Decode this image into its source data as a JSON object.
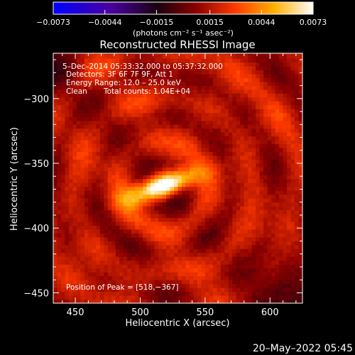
{
  "chart_data": {
    "type": "heatmap",
    "title": "Reconstructed RHESSI Image",
    "xlabel": "Heliocentric X (arcsec)",
    "ylabel": "Heliocentric Y (arcsec)",
    "xlim": [
      433,
      625
    ],
    "ylim": [
      -458,
      -265
    ],
    "x_ticks": [
      450,
      500,
      550,
      600
    ],
    "x_tick_labels": [
      "450",
      "500",
      "550",
      "600"
    ],
    "y_ticks": [
      -300,
      -350,
      -400,
      -450
    ],
    "y_tick_labels": [
      "−300",
      "−350",
      "−400",
      "−450"
    ],
    "colorbar": {
      "colormap": "fire (blue-purple-red-orange-yellow-white)",
      "range": [
        -0.0073,
        0.0073
      ],
      "tick_labels": [
        "−0.0073",
        "−0.0044",
        "−0.0015",
        "0.0015",
        "0.0044",
        "0.0073"
      ],
      "label": "(photons cm⁻² s⁻¹ asec⁻²)"
    },
    "annotations": {
      "time_range": "5–Dec–2014 05:33:32.000 to 05:37:32.000",
      "detectors": "Detectors: 3F 6F 7F 9F, Att 1",
      "energy": "Energy Range: 12.0 – 25.0 keV",
      "clean_label": "Clean",
      "total_counts": "Total counts: 1.04E+04",
      "peak": "Position of Peak = [518,−367]"
    },
    "peak_position": [
      518,
      -367
    ],
    "source": {
      "center": [
        518,
        -367
      ],
      "sigma_major_arcsec": 20,
      "sigma_minor_arcsec": 6,
      "orientation_deg": 20,
      "peak_level": 0.0073
    },
    "background_level": 0.0015
  },
  "footer": {
    "date_stamp": "20–May–2022 05:45"
  },
  "colors": {
    "background": "#000000",
    "axes": "#ffffff",
    "text": "#ffffff"
  }
}
